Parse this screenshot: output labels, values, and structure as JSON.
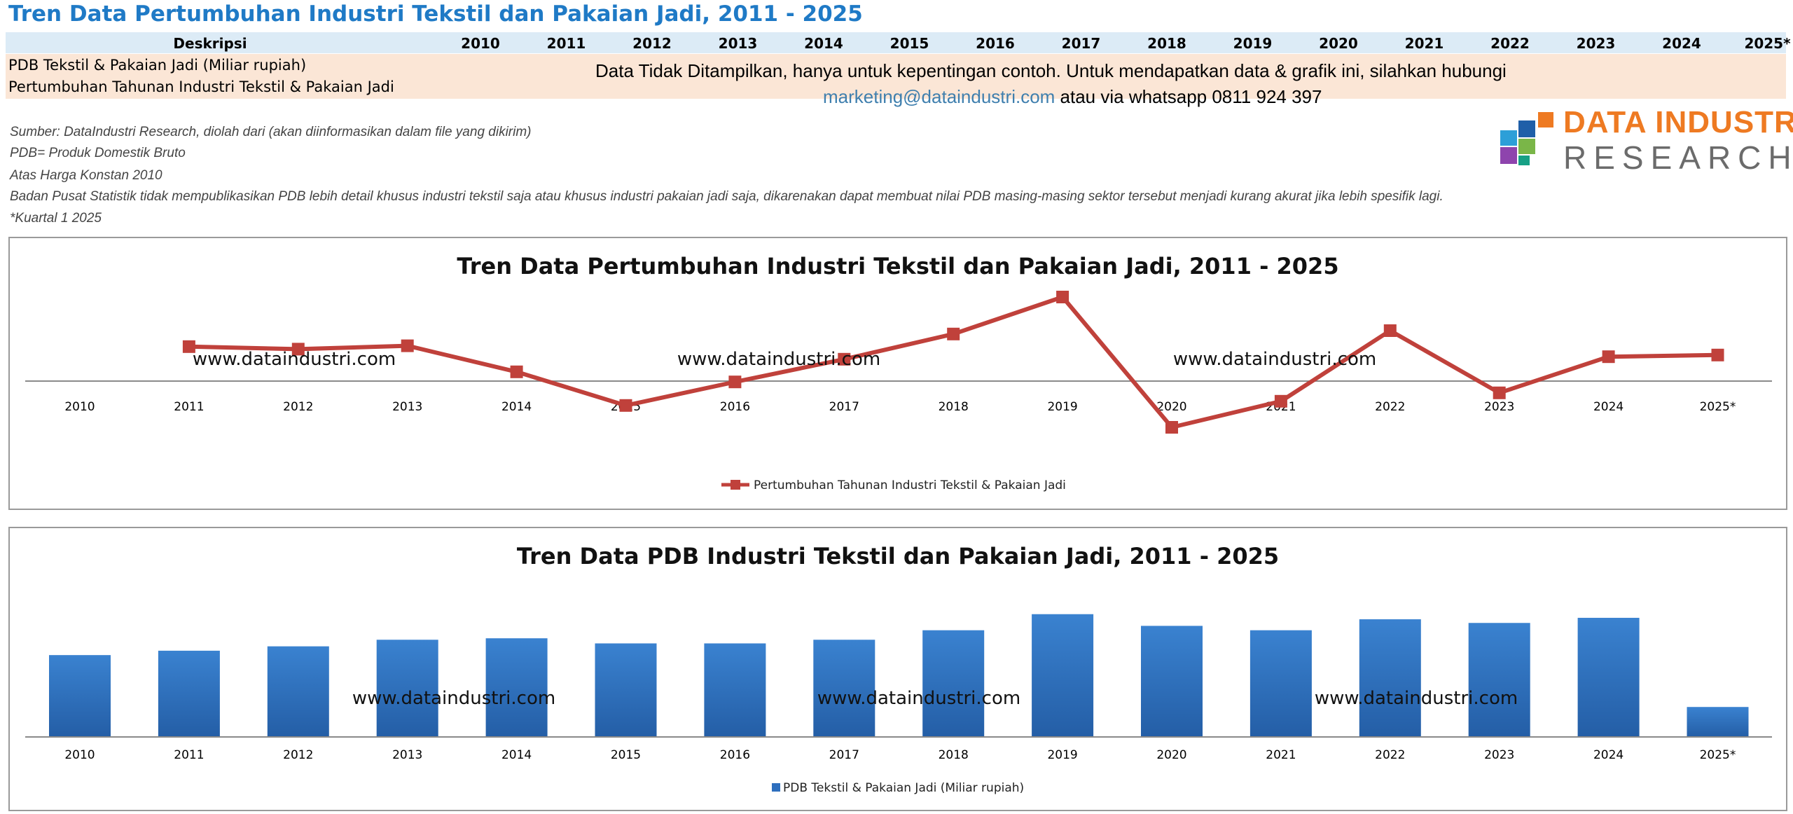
{
  "page": {
    "title": "Tren Data Pertumbuhan Industri Tekstil dan Pakaian Jadi, 2011 - 2025"
  },
  "table": {
    "header_label": "Deskripsi",
    "years": [
      "2010",
      "2011",
      "2012",
      "2013",
      "2014",
      "2015",
      "2016",
      "2017",
      "2018",
      "2019",
      "2020",
      "2021",
      "2022",
      "2023",
      "2024",
      "2025*"
    ],
    "row1_label": "PDB Tekstil & Pakaian Jadi (Miliar rupiah)",
    "row2_label": "Pertumbuhan Tahunan Industri Tekstil & Pakaian Jadi",
    "notice_line1": "Data Tidak Ditampilkan, hanya untuk kepentingan contoh. Untuk mendapatkan data & grafik  ini, silahkan hubungi",
    "notice_email": "marketing@dataindustri.com",
    "notice_line2_rest": " atau via whatsapp 0811 924 397"
  },
  "notes": [
    "Sumber: DataIndustri Research, diolah dari (akan diinformasikan dalam file yang dikirim)",
    "PDB= Produk Domestik Bruto",
    "Atas Harga Konstan 2010",
    "Badan Pusat Statistik tidak mempublikasikan PDB lebih detail khusus industri tekstil saja atau khusus industri pakaian jadi saja, dikarenakan dapat membuat nilai PDB masing-masing sektor tersebut menjadi kurang akurat jika lebih spesifik lagi.",
    "*Kuartal 1 2025"
  ],
  "logo": {
    "line1": "DATA INDUSTRI",
    "line2": "RESEARCH",
    "colors": [
      "#1f5fa8",
      "#ee7a22",
      "#2d9fd8",
      "#7ab648",
      "#c0392b",
      "#8e44ad",
      "#16a085"
    ]
  },
  "watermark": "www.dataindustri.com",
  "chart_data": [
    {
      "type": "line",
      "title": "Tren Data Pertumbuhan Industri Tekstil dan Pakaian Jadi, 2011 - 2025",
      "categories": [
        "2010",
        "2011",
        "2012",
        "2013",
        "2014",
        "2015",
        "2016",
        "2017",
        "2018",
        "2019",
        "2020",
        "2021",
        "2022",
        "2023",
        "2024",
        "2025*"
      ],
      "series": [
        {
          "name": "Pertumbuhan Tahunan Industri Tekstil & Pakaian Jadi",
          "color": "#c0413b",
          "values": [
            null,
            4.1,
            3.8,
            4.2,
            1.1,
            -2.9,
            -0.1,
            2.6,
            5.6,
            10.0,
            -5.5,
            -2.4,
            6.0,
            -1.4,
            2.9,
            3.1
          ]
        }
      ],
      "ylim": [
        -8,
        12
      ],
      "grid": false,
      "legend": "bottom"
    },
    {
      "type": "bar",
      "title": "Tren Data PDB Industri Tekstil dan Pakaian Jadi, 2011 - 2025",
      "categories": [
        "2010",
        "2011",
        "2012",
        "2013",
        "2014",
        "2015",
        "2016",
        "2017",
        "2018",
        "2019",
        "2020",
        "2021",
        "2022",
        "2023",
        "2024",
        "2025*"
      ],
      "series": [
        {
          "name": "PDB Tekstil & Pakaian Jadi (Miliar rupiah)",
          "color": "#2e6fbe",
          "values": [
            112000,
            118000,
            124000,
            133000,
            135000,
            128000,
            128000,
            133000,
            146000,
            168000,
            152000,
            146000,
            161000,
            156000,
            163000,
            41000
          ]
        }
      ],
      "ylim": [
        0,
        185000
      ],
      "grid": false,
      "legend": "bottom"
    }
  ]
}
